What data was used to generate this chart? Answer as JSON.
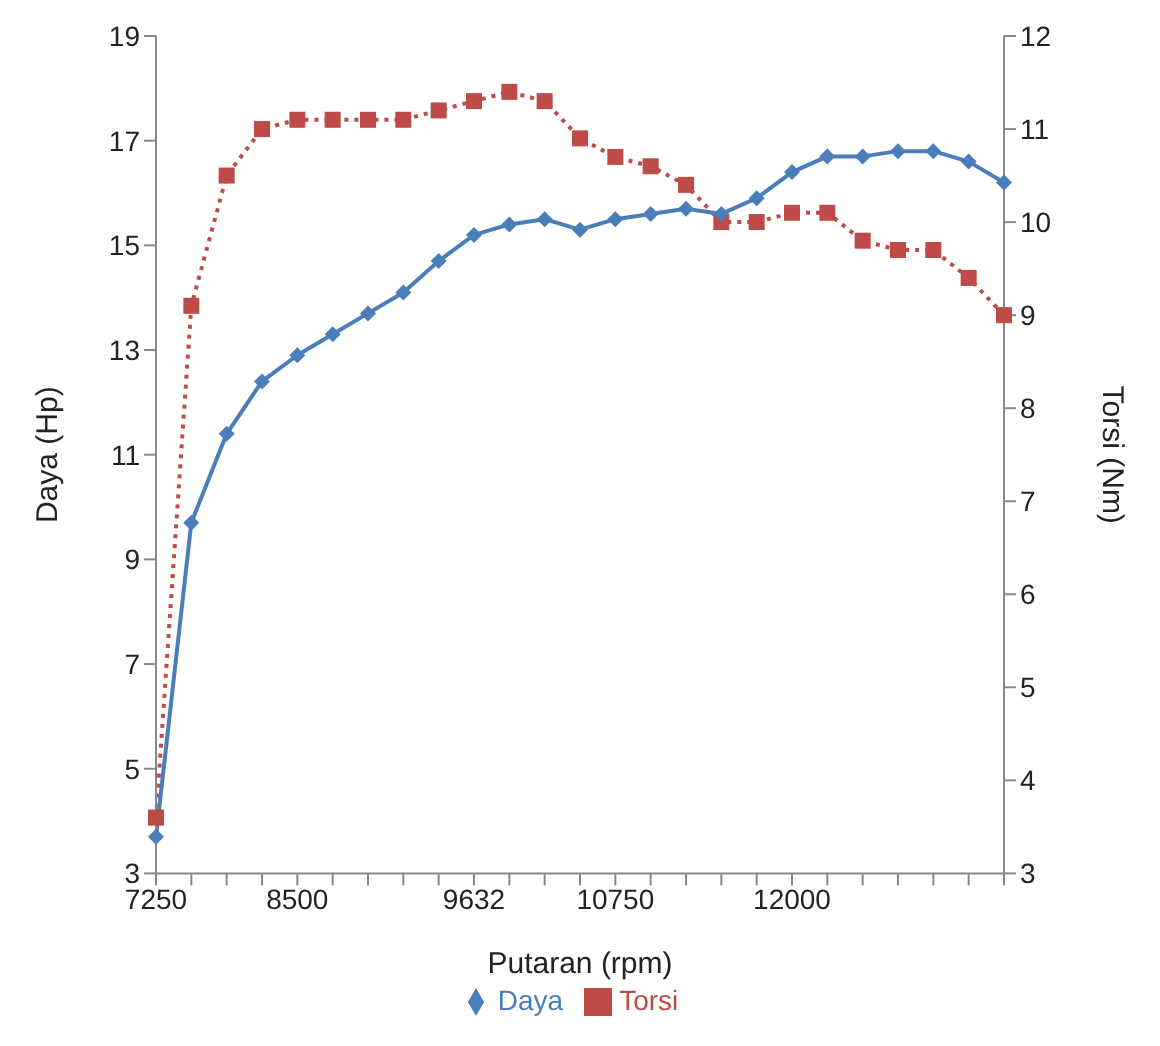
{
  "chart_data": {
    "type": "line",
    "xlabel": "Putaran (rpm)",
    "ylabel": "Daya (Hp)",
    "y2label": "Torsi (Nm)",
    "categories": [
      "7250",
      null,
      null,
      null,
      "8500",
      null,
      null,
      null,
      null,
      "9632",
      null,
      null,
      null,
      "10750",
      null,
      null,
      null,
      null,
      "12000",
      null,
      null,
      null,
      null,
      null,
      null
    ],
    "series": [
      {
        "name": "Daya",
        "color": "#4a7ebb",
        "marker": "diamond",
        "line_style": "solid",
        "values": [
          3.7,
          9.7,
          11.4,
          12.4,
          12.9,
          13.3,
          13.7,
          14.1,
          14.7,
          15.2,
          15.4,
          15.5,
          15.3,
          15.5,
          15.6,
          15.7,
          15.6,
          15.9,
          16.4,
          16.7,
          16.7,
          16.8,
          16.8,
          16.6,
          16.2
        ]
      },
      {
        "name": "Torsi",
        "color": "#be4b48",
        "marker": "square",
        "line_style": "dotted",
        "axis": "y2",
        "values": [
          3.6,
          9.1,
          10.5,
          11.0,
          11.1,
          11.1,
          11.1,
          11.1,
          11.2,
          11.3,
          11.4,
          11.3,
          10.9,
          10.7,
          10.6,
          10.4,
          10.0,
          10.0,
          10.1,
          10.1,
          9.8,
          9.7,
          9.7,
          9.4,
          9.0
        ]
      }
    ],
    "ylim": [
      3,
      19
    ],
    "yticks": [
      3,
      5,
      7,
      9,
      11,
      13,
      15,
      17,
      19
    ],
    "y2lim": [
      3,
      12
    ],
    "y2ticks": [
      3,
      4,
      5,
      6,
      7,
      8,
      9,
      10,
      11,
      12
    ],
    "grid": false,
    "legend": "bottom"
  }
}
